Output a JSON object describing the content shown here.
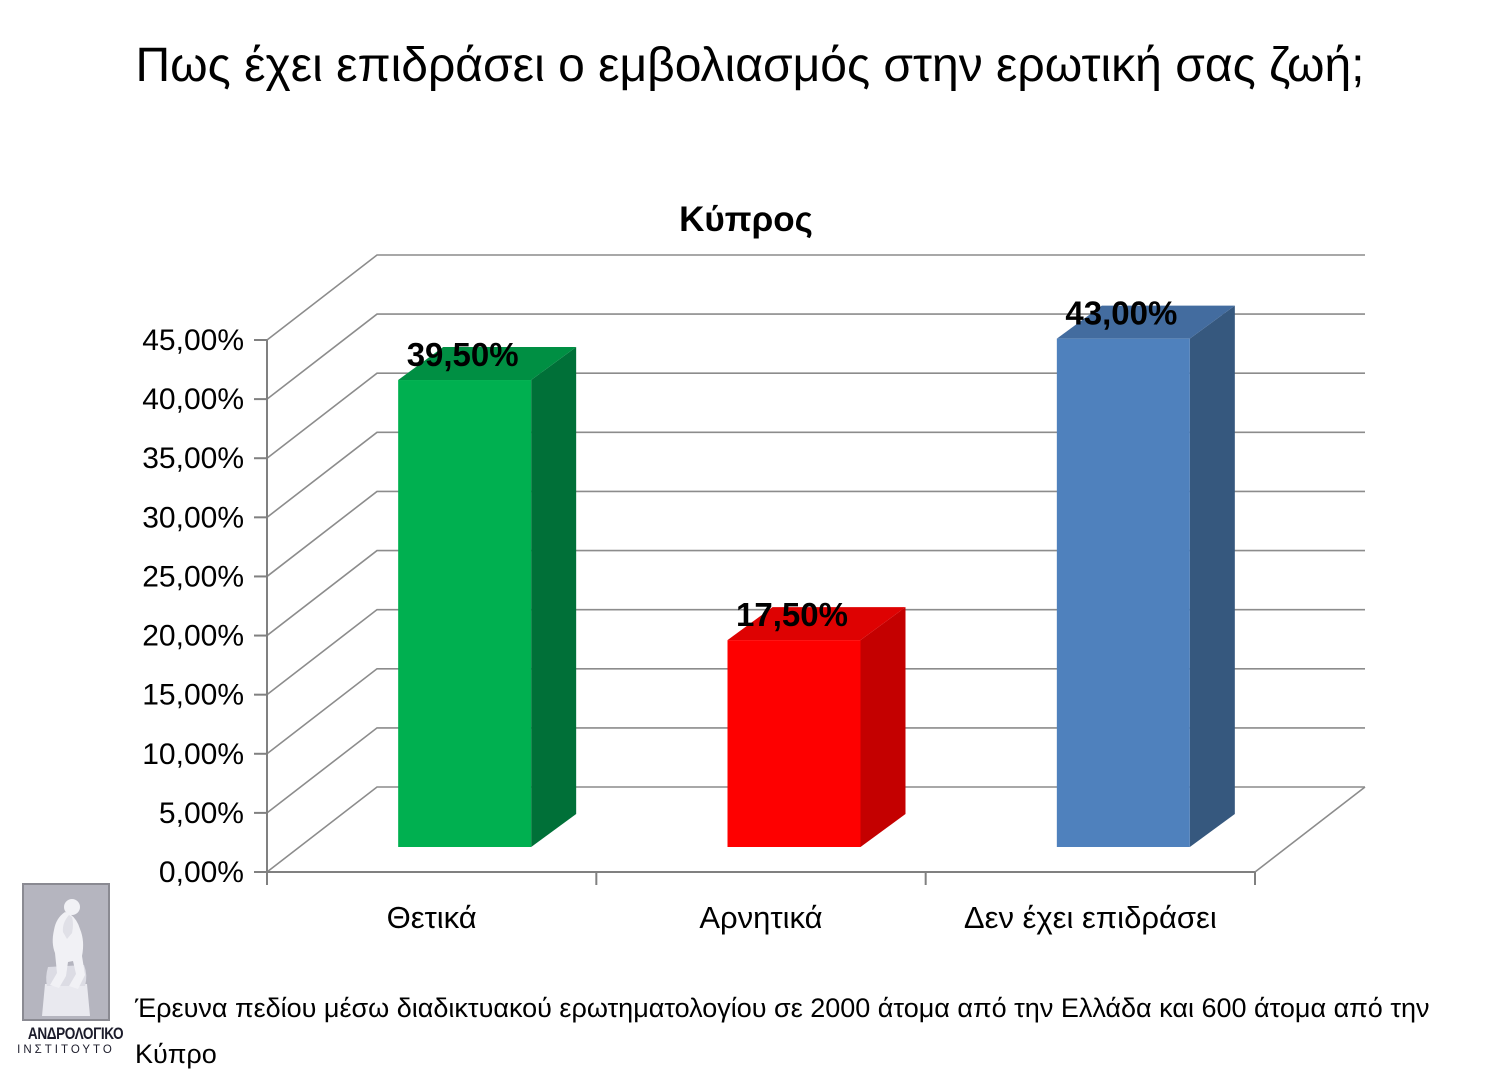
{
  "slide": {
    "title": "Πως έχει επιδράσει ο εμβολιασμός στην ερωτική σας ζωή;",
    "footnote": "Έρευνα πεδίου μέσω διαδικτυακού ερωτηματολογίου σε 2000 άτομα από την Ελλάδα και 600 άτομα από την Κύπρο"
  },
  "logo": {
    "image": "thinker-statue",
    "name": "ΑΝΔΡΟΛΟΓΙΚΟ",
    "subname": "ΙΝΣΤΙΤΟΥΤΟ"
  },
  "chart_data": {
    "type": "bar",
    "variant": "3d-column",
    "title": "Κύπρος",
    "categories": [
      "Θετικά",
      "Αρνητικά",
      "Δεν έχει επιδράσει"
    ],
    "values": [
      39.5,
      17.5,
      43.0
    ],
    "data_labels": [
      "39,50%",
      "17,50%",
      "43,00%"
    ],
    "series_colors": [
      {
        "front": "#00B050",
        "top": "#008F43",
        "side": "#007038"
      },
      {
        "front": "#FE0000",
        "top": "#DE0202",
        "side": "#C40000"
      },
      {
        "front": "#4F81BD",
        "top": "#436C9F",
        "side": "#36587E"
      }
    ],
    "xlabel": "",
    "ylabel": "",
    "ylim": [
      0,
      45
    ],
    "ytick_step": 5,
    "ytick_labels": [
      "0,00%",
      "5,00%",
      "10,00%",
      "15,00%",
      "20,00%",
      "25,00%",
      "30,00%",
      "35,00%",
      "40,00%",
      "45,00%"
    ],
    "grid": true,
    "legend": false,
    "grid_color": "#8C8C8C",
    "axis_color": "#808080",
    "label_color": "#000000"
  }
}
